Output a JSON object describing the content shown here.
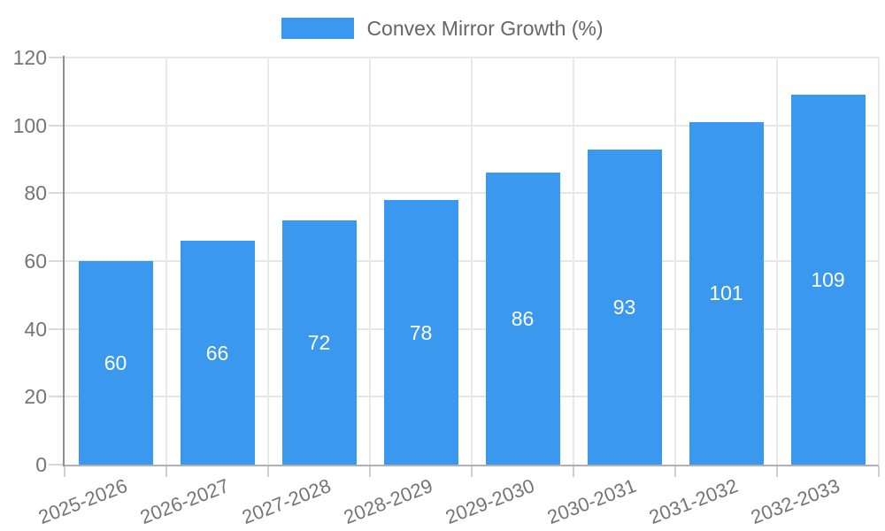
{
  "chart_data": {
    "type": "bar",
    "title": "",
    "xlabel": "",
    "ylabel": "",
    "legend": {
      "label": "Convex Mirror Growth (%)",
      "position": "top-center"
    },
    "categories": [
      "2025-2026",
      "2026-2027",
      "2027-2028",
      "2028-2029",
      "2029-2030",
      "2030-2031",
      "2031-2032",
      "2032-2033"
    ],
    "series": [
      {
        "name": "Convex Mirror Growth (%)",
        "values": [
          60,
          66,
          72,
          78,
          86,
          93,
          101,
          109
        ]
      }
    ],
    "ylim": [
      0,
      120
    ],
    "yticks": [
      0,
      20,
      40,
      60,
      80,
      100,
      120
    ],
    "grid": true,
    "colors": {
      "bar": "#3A99EE",
      "value_label": "#ffffff",
      "axis_label": "#757575",
      "legend_text": "#666666",
      "gridline": "#e6e6e6"
    }
  }
}
